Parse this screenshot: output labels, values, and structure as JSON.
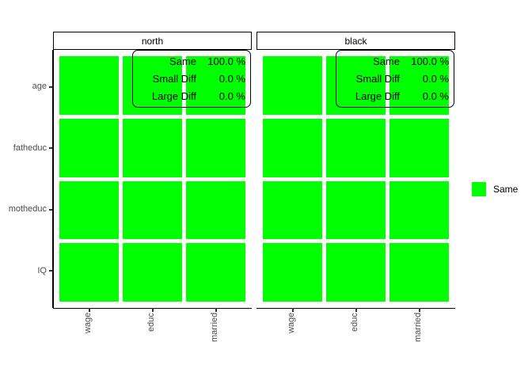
{
  "colors": {
    "background": "#ffffff",
    "axis_text": "#4d4d4d",
    "line": "#000000"
  },
  "chart_data": {
    "type": "heatmap",
    "title": "",
    "xlabel": "",
    "ylabel": "",
    "x_categories": [
      "wage",
      "educ",
      "married"
    ],
    "y_categories": [
      "age",
      "fatheduc",
      "motheduc",
      "IQ"
    ],
    "value_colors": {
      "Same": "#00ff00"
    },
    "grid": false,
    "legend_position": "right",
    "legend": [
      {
        "label": "Same",
        "color": "#00ff00"
      }
    ],
    "facets": [
      {
        "label": "north",
        "stats": [
          {
            "label": "Same",
            "value": "100.0 %"
          },
          {
            "label": "Small Diff",
            "value": "0.0 %"
          },
          {
            "label": "Large Diff",
            "value": "0.0 %"
          }
        ],
        "cells": [
          [
            "Same",
            "Same",
            "Same"
          ],
          [
            "Same",
            "Same",
            "Same"
          ],
          [
            "Same",
            "Same",
            "Same"
          ],
          [
            "Same",
            "Same",
            "Same"
          ]
        ]
      },
      {
        "label": "black",
        "stats": [
          {
            "label": "Same",
            "value": "100.0 %"
          },
          {
            "label": "Small Diff",
            "value": "0.0 %"
          },
          {
            "label": "Large Diff",
            "value": "0.0 %"
          }
        ],
        "cells": [
          [
            "Same",
            "Same",
            "Same"
          ],
          [
            "Same",
            "Same",
            "Same"
          ],
          [
            "Same",
            "Same",
            "Same"
          ],
          [
            "Same",
            "Same",
            "Same"
          ]
        ]
      }
    ]
  }
}
